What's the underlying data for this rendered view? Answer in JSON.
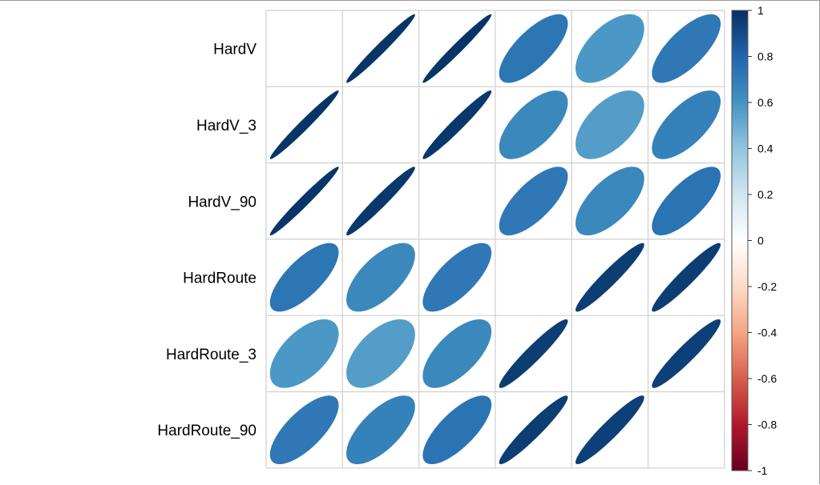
{
  "chart_data": {
    "type": "heatmap",
    "method": "ellipse",
    "variables": [
      "HardV",
      "HardV_3",
      "HardV_90",
      "HardRoute",
      "HardRoute_3",
      "HardRoute_90"
    ],
    "correlations": [
      [
        null,
        0.98,
        0.98,
        0.73,
        0.58,
        0.72
      ],
      [
        0.98,
        null,
        0.97,
        0.65,
        0.56,
        0.68
      ],
      [
        0.98,
        0.97,
        null,
        0.72,
        0.65,
        0.74
      ],
      [
        0.73,
        0.65,
        0.72,
        null,
        0.95,
        0.95
      ],
      [
        0.58,
        0.56,
        0.65,
        0.95,
        null,
        0.94
      ],
      [
        0.72,
        0.68,
        0.74,
        0.95,
        0.94,
        null
      ]
    ],
    "colorbar": {
      "range": [
        -1,
        1
      ],
      "ticks": [
        "1",
        "0.8",
        "0.6",
        "0.4",
        "0.2",
        "0",
        "-0.2",
        "-0.4",
        "-0.6",
        "-0.8",
        "-1"
      ],
      "colors": [
        "#67001F",
        "#B2182B",
        "#D6604D",
        "#F4A582",
        "#FDDBC7",
        "#FFFFFF",
        "#D1E5F0",
        "#92C5DE",
        "#4393C3",
        "#2166AC",
        "#053061"
      ]
    },
    "diagonal": "blank",
    "grid": true,
    "legend_position": "right"
  }
}
